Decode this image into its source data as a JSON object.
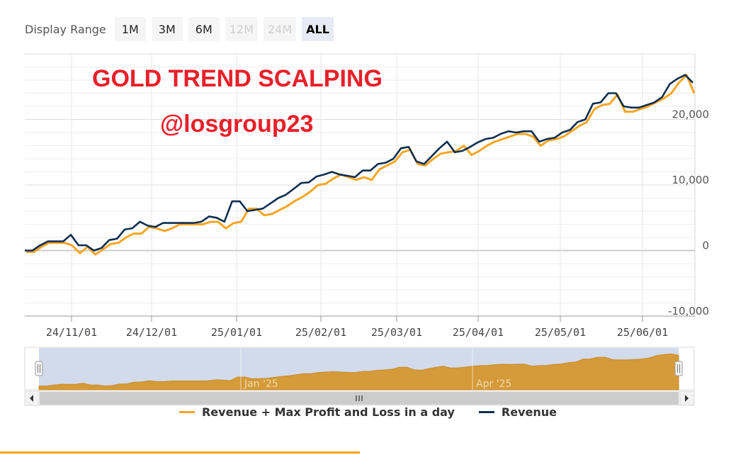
{
  "toolbar": {
    "label": "Display Range",
    "buttons": [
      {
        "label": "1M",
        "state": "enabled"
      },
      {
        "label": "3M",
        "state": "enabled"
      },
      {
        "label": "6M",
        "state": "enabled"
      },
      {
        "label": "12M",
        "state": "disabled"
      },
      {
        "label": "24M",
        "state": "disabled"
      },
      {
        "label": "ALL",
        "state": "active"
      }
    ]
  },
  "overlay": {
    "title": "GOLD TREND SCALPING",
    "handle": "@losgroup23",
    "color": "#e8202a"
  },
  "chart_data": {
    "type": "line",
    "x_ticks": [
      "24/11/01",
      "24/12/01",
      "25/01/01",
      "25/02/01",
      "25/03/01",
      "25/04/01",
      "25/05/01",
      "25/06/01"
    ],
    "y_ticks": [
      "-10,000",
      "0",
      "10,000",
      "20,000"
    ],
    "ylim": [
      -10000,
      30000
    ],
    "grid": true,
    "legend_position": "bottom",
    "series": [
      {
        "name": "Revenue + Max Profit and Loss in a day",
        "color": "#f5a623",
        "values": [
          0,
          0,
          800,
          1400,
          1400,
          1400,
          1000,
          -200,
          800,
          -400,
          400,
          1200,
          1400,
          2200,
          2800,
          2800,
          3800,
          3600,
          3200,
          3600,
          4200,
          4200,
          4200,
          4200,
          4600,
          4600,
          3600,
          4400,
          4600,
          6600,
          6600,
          5600,
          5800,
          6400,
          7000,
          7800,
          8400,
          9200,
          10200,
          10400,
          11200,
          11800,
          11400,
          11000,
          11400,
          11000,
          12600,
          13200,
          13800,
          15200,
          15600,
          13400,
          13200,
          14200,
          15000,
          15200,
          15400,
          16200,
          14800,
          15400,
          16200,
          16800,
          17200,
          17600,
          18000,
          18000,
          17600,
          16200,
          17000,
          17200,
          17600,
          18400,
          19200,
          19800,
          21800,
          22400,
          22600,
          24000,
          21400,
          21400,
          21800,
          22200,
          22800,
          23400,
          24200,
          25800,
          27000,
          24200
        ]
      },
      {
        "name": "Revenue",
        "color": "#0f2e50",
        "values": [
          0,
          0,
          800,
          1400,
          1400,
          1400,
          2400,
          800,
          800,
          0,
          400,
          1600,
          1800,
          3200,
          3400,
          4400,
          3800,
          3600,
          4200,
          4200,
          4200,
          4200,
          4200,
          4400,
          5200,
          5000,
          4400,
          7500,
          7500,
          6000,
          6200,
          6400,
          7200,
          8000,
          8500,
          9400,
          10300,
          10400,
          11300,
          11600,
          12000,
          11600,
          11400,
          11200,
          12200,
          12200,
          13200,
          13400,
          14000,
          15600,
          15800,
          13600,
          13200,
          14400,
          15600,
          16600,
          15000,
          15200,
          15800,
          16500,
          17000,
          17200,
          17800,
          18200,
          18000,
          18200,
          18200,
          16600,
          17000,
          17200,
          18000,
          18400,
          19600,
          20000,
          22400,
          22600,
          24000,
          24000,
          22000,
          21800,
          21800,
          22200,
          22600,
          23400,
          25400,
          26200,
          26800,
          25600
        ]
      }
    ],
    "navigator": {
      "labels": [
        "Jan '25",
        "Apr '25"
      ],
      "fill_color": "#d59a3a",
      "window_color": "#cdd7ea"
    }
  },
  "legend": {
    "items": [
      {
        "label": "Revenue + Max Profit and Loss in a day",
        "color": "#f5a623"
      },
      {
        "label": "Revenue",
        "color": "#0f2e50"
      }
    ]
  },
  "colors": {
    "accent_bar": "#f4a51c"
  }
}
